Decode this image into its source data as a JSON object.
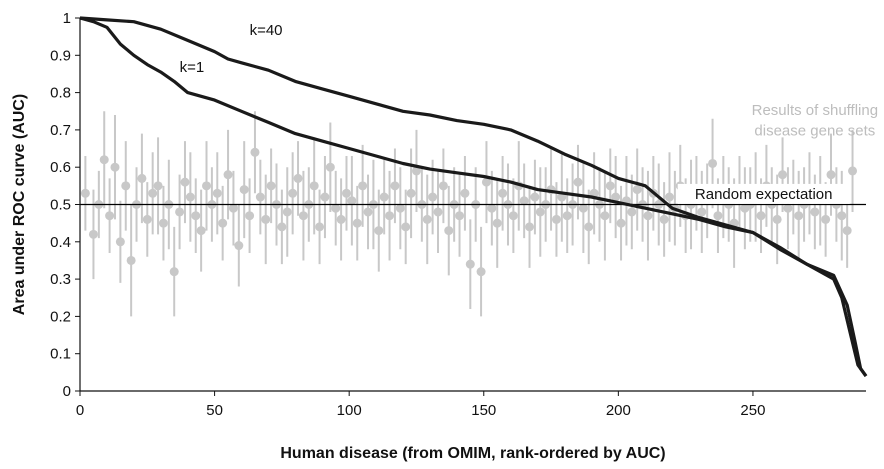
{
  "chart_data": {
    "type": "line",
    "title": "",
    "xlabel": "Human disease (from OMIM, rank-ordered by AUC)",
    "ylabel": "Area under ROC curve (AUC)",
    "xlim": [
      0,
      292
    ],
    "ylim": [
      0,
      1
    ],
    "x_ticks": [
      0,
      50,
      100,
      150,
      200,
      250
    ],
    "y_ticks": [
      0,
      0.1,
      0.2,
      0.3,
      0.4,
      0.5,
      0.6,
      0.7,
      0.8,
      0.9,
      1
    ],
    "grid": false,
    "colors": {
      "curves": "#1a1a1a",
      "shuffled": "#c8c8c8",
      "random_line": "#000000"
    },
    "series": [
      {
        "name": "k=40",
        "x": [
          0,
          10,
          20,
          30,
          40,
          50,
          55,
          60,
          70,
          80,
          90,
          100,
          110,
          120,
          130,
          140,
          150,
          160,
          170,
          180,
          190,
          200,
          210,
          220,
          230,
          240,
          250,
          260,
          270,
          280,
          285,
          288,
          290,
          292
        ],
        "values": [
          1.0,
          0.995,
          0.99,
          0.97,
          0.94,
          0.91,
          0.89,
          0.88,
          0.86,
          0.83,
          0.81,
          0.79,
          0.77,
          0.75,
          0.74,
          0.725,
          0.715,
          0.7,
          0.67,
          0.635,
          0.605,
          0.57,
          0.55,
          0.49,
          0.465,
          0.445,
          0.425,
          0.385,
          0.34,
          0.31,
          0.23,
          0.13,
          0.06,
          0.04
        ]
      },
      {
        "name": "k=1",
        "x": [
          0,
          5,
          10,
          15,
          20,
          25,
          30,
          35,
          40,
          50,
          60,
          70,
          80,
          90,
          100,
          110,
          120,
          130,
          140,
          150,
          160,
          170,
          180,
          190,
          200,
          210,
          220,
          230,
          240,
          250,
          260,
          270,
          280,
          283,
          286,
          289,
          292
        ],
        "values": [
          1.0,
          0.99,
          0.975,
          0.93,
          0.9,
          0.875,
          0.855,
          0.83,
          0.8,
          0.78,
          0.75,
          0.72,
          0.69,
          0.67,
          0.65,
          0.63,
          0.61,
          0.595,
          0.585,
          0.575,
          0.56,
          0.54,
          0.53,
          0.52,
          0.505,
          0.49,
          0.475,
          0.46,
          0.44,
          0.425,
          0.38,
          0.34,
          0.3,
          0.25,
          0.16,
          0.07,
          0.04
        ]
      },
      {
        "name": "Results of shuffling disease gene sets",
        "type": "errorbar",
        "x": [
          2,
          5,
          7,
          9,
          11,
          13,
          15,
          17,
          19,
          21,
          23,
          25,
          27,
          29,
          31,
          33,
          35,
          37,
          39,
          41,
          43,
          45,
          47,
          49,
          51,
          53,
          55,
          57,
          59,
          61,
          63,
          65,
          67,
          69,
          71,
          73,
          75,
          77,
          79,
          81,
          83,
          85,
          87,
          89,
          91,
          93,
          95,
          97,
          99,
          101,
          103,
          105,
          107,
          109,
          111,
          113,
          115,
          117,
          119,
          121,
          123,
          125,
          127,
          129,
          131,
          133,
          135,
          137,
          139,
          141,
          143,
          145,
          147,
          149,
          151,
          153,
          155,
          157,
          159,
          161,
          163,
          165,
          167,
          169,
          171,
          173,
          175,
          177,
          179,
          181,
          183,
          185,
          187,
          189,
          191,
          193,
          195,
          197,
          199,
          201,
          203,
          205,
          207,
          209,
          211,
          213,
          215,
          217,
          219,
          221,
          223,
          225,
          227,
          229,
          231,
          233,
          235,
          237,
          239,
          241,
          243,
          245,
          247,
          249,
          251,
          253,
          255,
          257,
          259,
          261,
          263,
          265,
          267,
          269,
          271,
          273,
          275,
          277,
          279,
          281,
          283,
          285,
          287
        ],
        "values": [
          0.53,
          0.42,
          0.5,
          0.62,
          0.47,
          0.6,
          0.4,
          0.55,
          0.35,
          0.5,
          0.57,
          0.46,
          0.53,
          0.55,
          0.45,
          0.5,
          0.32,
          0.48,
          0.56,
          0.52,
          0.47,
          0.43,
          0.55,
          0.5,
          0.53,
          0.45,
          0.58,
          0.49,
          0.39,
          0.54,
          0.47,
          0.64,
          0.52,
          0.46,
          0.55,
          0.5,
          0.44,
          0.48,
          0.53,
          0.57,
          0.47,
          0.5,
          0.55,
          0.44,
          0.52,
          0.6,
          0.49,
          0.46,
          0.53,
          0.51,
          0.45,
          0.55,
          0.48,
          0.5,
          0.43,
          0.52,
          0.47,
          0.55,
          0.49,
          0.44,
          0.53,
          0.59,
          0.5,
          0.46,
          0.52,
          0.48,
          0.55,
          0.43,
          0.5,
          0.47,
          0.53,
          0.34,
          0.5,
          0.32,
          0.56,
          0.49,
          0.45,
          0.53,
          0.5,
          0.47,
          0.55,
          0.51,
          0.44,
          0.52,
          0.48,
          0.5,
          0.54,
          0.46,
          0.52,
          0.47,
          0.5,
          0.56,
          0.49,
          0.44,
          0.53,
          0.5,
          0.47,
          0.55,
          0.52,
          0.45,
          0.51,
          0.48,
          0.54,
          0.5,
          0.47,
          0.53,
          0.5,
          0.46,
          0.52,
          0.49,
          0.55,
          0.47,
          0.5,
          0.53,
          0.48,
          0.51,
          0.61,
          0.47,
          0.52,
          0.5,
          0.45,
          0.53,
          0.49,
          0.5,
          0.52,
          0.47,
          0.55,
          0.5,
          0.46,
          0.58,
          0.49,
          0.52,
          0.47,
          0.5,
          0.53,
          0.48,
          0.51,
          0.46,
          0.58,
          0.5,
          0.47,
          0.43,
          0.59
        ],
        "errors": [
          0.1,
          0.12,
          0.09,
          0.13,
          0.1,
          0.14,
          0.11,
          0.12,
          0.15,
          0.1,
          0.12,
          0.1,
          0.11,
          0.13,
          0.1,
          0.12,
          0.12,
          0.1,
          0.11,
          0.12,
          0.1,
          0.11,
          0.12,
          0.1,
          0.11,
          0.1,
          0.12,
          0.1,
          0.11,
          0.13,
          0.1,
          0.11,
          0.1,
          0.12,
          0.1,
          0.11,
          0.1,
          0.12,
          0.11,
          0.1,
          0.12,
          0.1,
          0.13,
          0.1,
          0.11,
          0.12,
          0.1,
          0.11,
          0.1,
          0.12,
          0.1,
          0.11,
          0.1,
          0.12,
          0.11,
          0.1,
          0.12,
          0.1,
          0.11,
          0.1,
          0.12,
          0.11,
          0.1,
          0.12,
          0.1,
          0.11,
          0.1,
          0.12,
          0.1,
          0.11,
          0.1,
          0.12,
          0.1,
          0.12,
          0.11,
          0.1,
          0.12,
          0.1,
          0.11,
          0.1,
          0.12,
          0.1,
          0.11,
          0.1,
          0.12,
          0.1,
          0.11,
          0.1,
          0.12,
          0.1,
          0.11,
          0.1,
          0.12,
          0.1,
          0.11,
          0.1,
          0.12,
          0.1,
          0.11,
          0.1,
          0.12,
          0.1,
          0.11,
          0.1,
          0.12,
          0.1,
          0.11,
          0.1,
          0.12,
          0.1,
          0.11,
          0.1,
          0.12,
          0.1,
          0.11,
          0.1,
          0.12,
          0.1,
          0.11,
          0.1,
          0.12,
          0.1,
          0.11,
          0.1,
          0.12,
          0.1,
          0.11,
          0.1,
          0.12,
          0.1,
          0.11,
          0.1,
          0.12,
          0.1,
          0.11,
          0.1,
          0.12,
          0.1,
          0.11,
          0.1,
          0.12,
          0.1,
          0.11
        ]
      },
      {
        "name": "Random expectation",
        "type": "hline",
        "values": [
          0.5
        ]
      }
    ],
    "annotations": [
      {
        "text": "k=40",
        "x": 63,
        "y": 0.955
      },
      {
        "text": "k=1",
        "x": 37,
        "y": 0.855
      },
      {
        "text": "Results of shuffling",
        "x": 273,
        "y": 0.74
      },
      {
        "text": "disease gene sets",
        "x": 273,
        "y": 0.685
      },
      {
        "text": "Random expectation",
        "x": 254,
        "y": 0.515
      }
    ]
  }
}
